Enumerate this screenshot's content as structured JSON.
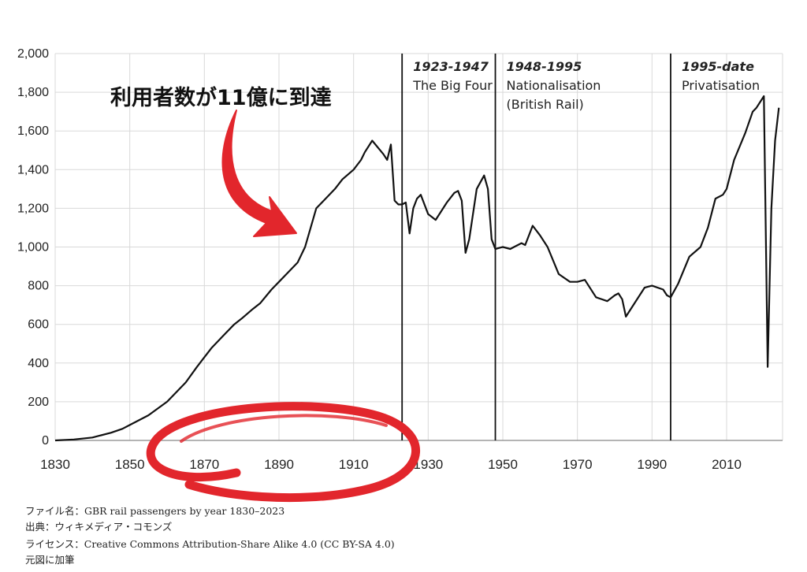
{
  "chart_data": {
    "type": "line",
    "title": "",
    "xlabel": "",
    "ylabel": "",
    "xlim": [
      1830,
      2025
    ],
    "ylim": [
      0,
      2000
    ],
    "x_ticks": [
      "1830",
      "1850",
      "1870",
      "1890",
      "1910",
      "1930",
      "1950",
      "1970",
      "1990",
      "2010"
    ],
    "y_ticks": [
      "0",
      "200",
      "400",
      "600",
      "800",
      "1,000",
      "1,200",
      "1,400",
      "1,600",
      "1,800",
      "2,000"
    ],
    "grid": true,
    "series": [
      {
        "x": [
          1830,
          1835,
          1840,
          1845,
          1848,
          1850,
          1855,
          1860,
          1865,
          1868,
          1870,
          1872,
          1875,
          1878,
          1880,
          1883,
          1885,
          1888,
          1890,
          1892,
          1895,
          1897,
          1900,
          1902,
          1905,
          1907,
          1910,
          1912,
          1913,
          1915,
          1918,
          1919,
          1920,
          1921,
          1922,
          1923,
          1924,
          1925,
          1926,
          1927,
          1928,
          1930,
          1932,
          1935,
          1937,
          1938,
          1939,
          1940,
          1941,
          1943,
          1945,
          1946,
          1947,
          1948,
          1950,
          1952,
          1953,
          1955,
          1956,
          1958,
          1960,
          1962,
          1965,
          1968,
          1970,
          1972,
          1975,
          1978,
          1980,
          1981,
          1982,
          1983,
          1985,
          1988,
          1990,
          1993,
          1994,
          1995,
          1997,
          2000,
          2003,
          2005,
          2007,
          2009,
          2010,
          2012,
          2015,
          2017,
          2018,
          2019,
          2020,
          2021,
          2022,
          2023,
          2024
        ],
        "values": [
          0,
          5,
          15,
          40,
          60,
          80,
          130,
          200,
          300,
          380,
          430,
          480,
          540,
          600,
          630,
          680,
          710,
          780,
          820,
          860,
          920,
          1000,
          1200,
          1240,
          1300,
          1350,
          1400,
          1450,
          1490,
          1550,
          1480,
          1450,
          1530,
          1240,
          1220,
          1220,
          1230,
          1070,
          1200,
          1250,
          1270,
          1170,
          1140,
          1230,
          1280,
          1290,
          1240,
          970,
          1040,
          1300,
          1370,
          1300,
          1040,
          990,
          1000,
          990,
          1000,
          1020,
          1010,
          1110,
          1060,
          1000,
          860,
          820,
          820,
          830,
          740,
          720,
          750,
          760,
          730,
          640,
          700,
          790,
          800,
          780,
          750,
          740,
          810,
          950,
          1000,
          1100,
          1250,
          1270,
          1300,
          1450,
          1590,
          1700,
          1720,
          1750,
          1780,
          380,
          1200,
          1550,
          1720
        ]
      }
    ],
    "era_markers": [
      {
        "x": 1923,
        "date": "1923-1947",
        "label_lines": [
          "The Big Four"
        ]
      },
      {
        "x": 1948,
        "date": "1948-1995",
        "label_lines": [
          "Nationalisation",
          "(British Rail)"
        ]
      },
      {
        "x": 1995,
        "date": "1995-date",
        "label_lines": [
          "Privatisation"
        ]
      }
    ],
    "colors": {
      "line": "#111111",
      "grid": "#d9d9d9",
      "annotation": "#e2262c"
    }
  },
  "annotation": {
    "text": "利用者数が11億に到達"
  },
  "footer": {
    "line1": "ファイル名：GBR rail passengers by year 1830–2023",
    "line2": "出典：ウィキメディア・コモンズ",
    "line3": "ライセンス：Creative Commons Attribution-Share Alike 4.0 (CC BY-SA 4.0)",
    "line4": "元図に加筆"
  }
}
